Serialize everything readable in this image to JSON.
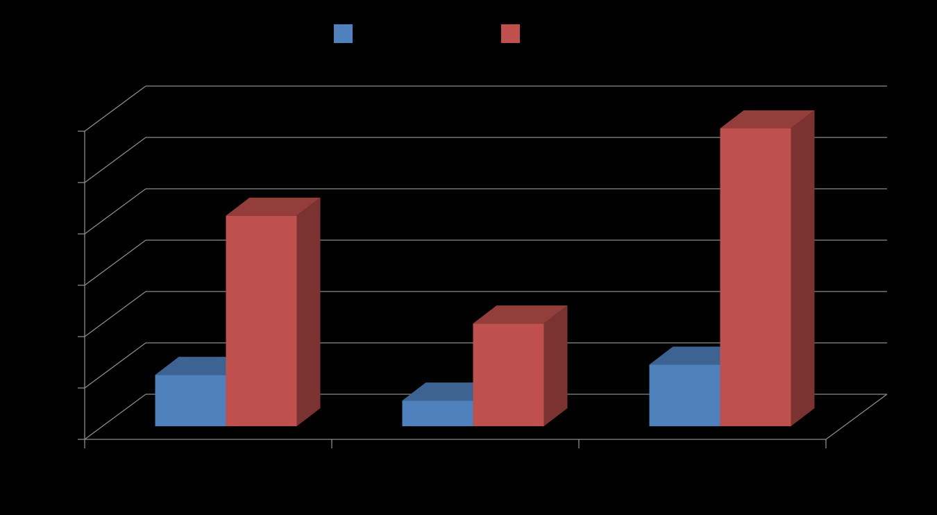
{
  "chart_data": {
    "type": "bar",
    "categories": [
      null,
      null,
      null
    ],
    "series": [
      {
        "color": "#4f81bd",
        "values": [
          1.0,
          0.5,
          1.2
        ]
      },
      {
        "color": "#c0504d",
        "values": [
          4.1,
          2.0,
          5.8
        ]
      }
    ],
    "ylim": [
      0,
      6
    ],
    "yticks": [
      0,
      1,
      2,
      3,
      4,
      5,
      6
    ],
    "grid": true
  }
}
